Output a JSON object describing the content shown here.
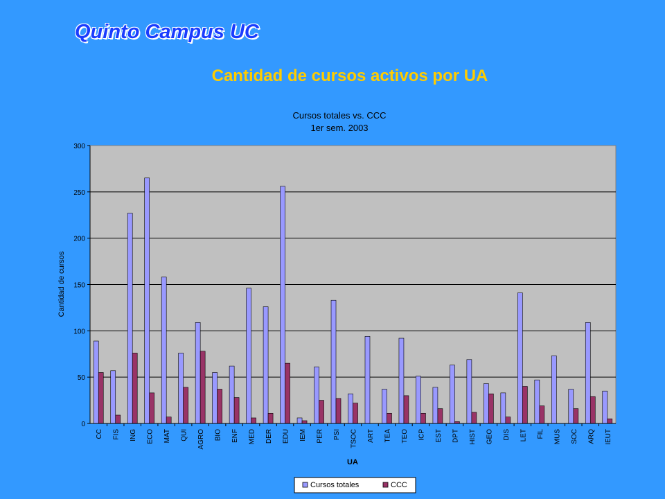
{
  "slide": {
    "title": "Quinto Campus UC",
    "subtitle": "Cantidad de cursos activos por UA"
  },
  "colors": {
    "background": "#3399ff",
    "plot_area": "#c0c0c0",
    "cursos_totales": "#9999ff",
    "ccc": "#993366",
    "title": "#1a3cff",
    "subtitle": "#ffcc00"
  },
  "chart_data": {
    "type": "bar",
    "title": "Cursos totales vs. CCC",
    "subtitle": "1er sem. 2003",
    "xlabel": "UA",
    "ylabel": "Cantidad de cursos",
    "ylim": [
      0,
      300
    ],
    "yticks": [
      0,
      50,
      100,
      150,
      200,
      250,
      300
    ],
    "grid": true,
    "legend_position": "bottom",
    "categories": [
      "CC",
      "FIS",
      "ING",
      "ECO",
      "MAT",
      "QUI",
      "AGRO",
      "BIO",
      "ENF",
      "MED",
      "DER",
      "EDU",
      "IEM",
      "PER",
      "PSI",
      "TSOC",
      "ART",
      "TEA",
      "TEO",
      "ICP",
      "EST",
      "DPT",
      "HIST",
      "GEO",
      "DIS",
      "LET",
      "FIL",
      "MUS",
      "SOC",
      "ARQ",
      "IEUT"
    ],
    "series": [
      {
        "name": "Cursos totales",
        "values": [
          89,
          57,
          227,
          265,
          158,
          76,
          109,
          55,
          62,
          146,
          126,
          256,
          6,
          61,
          133,
          32,
          94,
          37,
          92,
          51,
          39,
          63,
          69,
          43,
          33,
          141,
          47,
          73,
          37,
          109,
          35
        ]
      },
      {
        "name": "CCC",
        "values": [
          55,
          9,
          76,
          33,
          7,
          39,
          78,
          37,
          28,
          6,
          11,
          65,
          3,
          25,
          27,
          22,
          0,
          11,
          30,
          11,
          16,
          2,
          12,
          32,
          7,
          40,
          19,
          0,
          16,
          29,
          5
        ]
      }
    ]
  }
}
